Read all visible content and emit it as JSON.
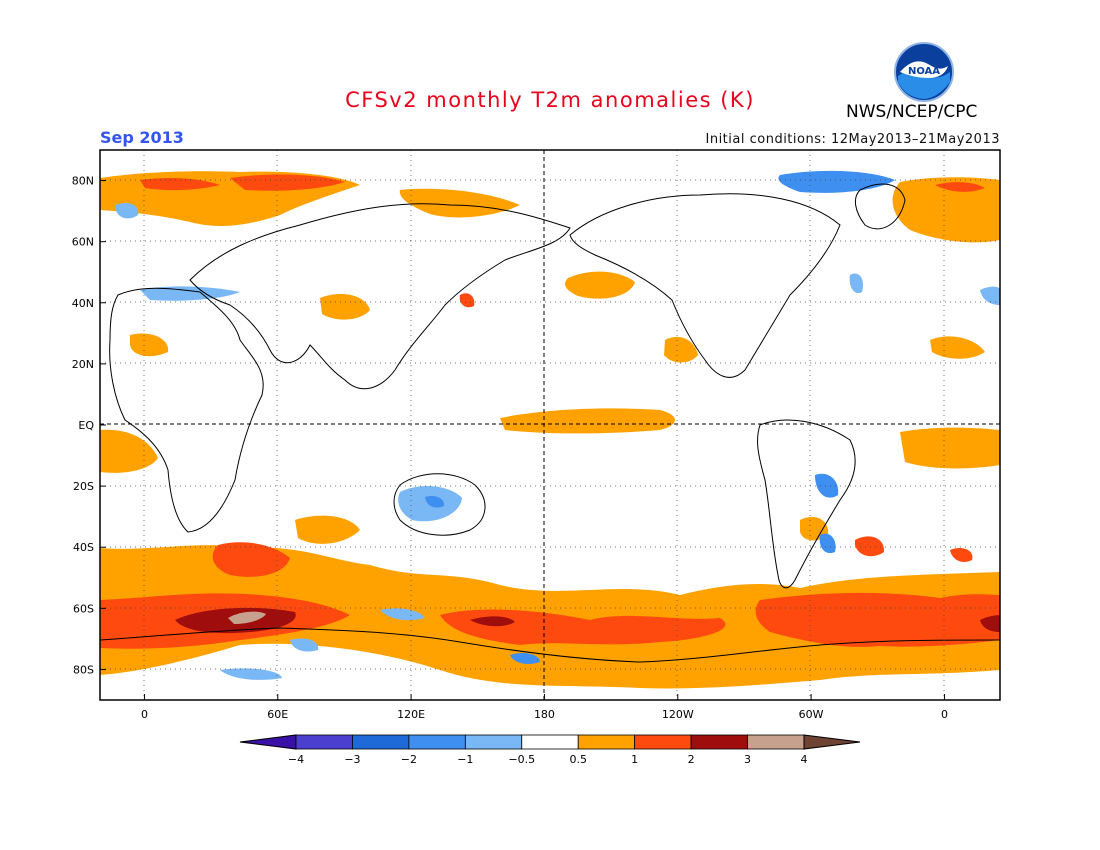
{
  "header": {
    "title": "CFSv2 monthly T2m anomalies (K)",
    "month": "Sep 2013",
    "initial_conditions": "Initial conditions: 12May2013–21May2013",
    "agency": "NWS/NCEP/CPC",
    "logo_text": "NOAA"
  },
  "map": {
    "lat_ticks": [
      "80N",
      "60N",
      "40N",
      "20N",
      "EQ",
      "20S",
      "40S",
      "60S",
      "80S"
    ],
    "lat_values": [
      80,
      60,
      40,
      20,
      0,
      -20,
      -40,
      -60,
      -80
    ],
    "lon_ticks": [
      "0",
      "60E",
      "120E",
      "180",
      "120W",
      "60W",
      "0"
    ],
    "lon_values": [
      0,
      60,
      120,
      180,
      240,
      300,
      360
    ],
    "lon_range": [
      -20,
      385
    ],
    "lat_range": [
      -90,
      90
    ]
  },
  "colorbar": {
    "labels": [
      "−4",
      "−3",
      "−2",
      "−1",
      "−0.5",
      "0.5",
      "1",
      "2",
      "3",
      "4"
    ],
    "colors": [
      "#3a10a6",
      "#4a3fcf",
      "#1d6ad8",
      "#3e8ff0",
      "#7ab8f5",
      "#ffffff",
      "#ffa200",
      "#ff4a0f",
      "#a00d0d",
      "#c8a08e",
      "#6e4333"
    ]
  },
  "colors": {
    "light_orange": "#ffa200",
    "red_orange": "#ff4a0f",
    "dark_red": "#a00d0d",
    "tan": "#c8a08e",
    "light_blue": "#7ab8f5",
    "mid_blue": "#3e8ff0"
  }
}
